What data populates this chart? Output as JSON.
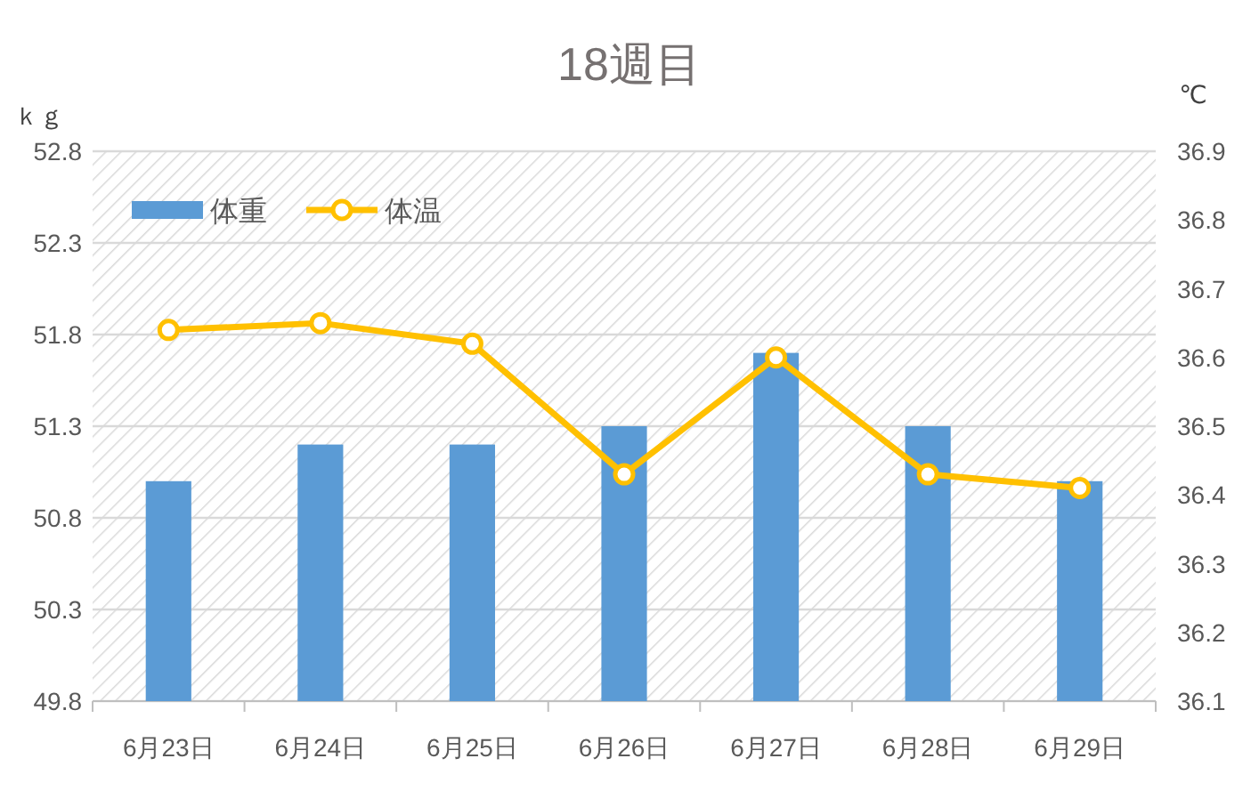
{
  "chart_data": {
    "type": "bar",
    "title": "18週目",
    "ylabel": "ｋｇ",
    "y2label": "℃",
    "categories": [
      "6月23日",
      "6月24日",
      "6月25日",
      "6月26日",
      "6月27日",
      "6月28日",
      "6月29日"
    ],
    "series": [
      {
        "name": "体重",
        "color": "#5b9bd5",
        "values": [
          51.0,
          51.2,
          51.2,
          51.3,
          51.7,
          51.3,
          51.0
        ]
      },
      {
        "name": "体温",
        "type": "line",
        "axis": "y2",
        "color": "#ffc000",
        "marker": "circle",
        "values": [
          36.64,
          36.65,
          36.62,
          36.43,
          36.6,
          36.43,
          36.41
        ]
      }
    ],
    "ylim": [
      49.8,
      52.8
    ],
    "yticks": [
      49.8,
      50.3,
      50.8,
      51.3,
      51.8,
      52.3,
      52.8
    ],
    "y2lim": [
      36.1,
      36.9
    ],
    "y2ticks": [
      36.1,
      36.2,
      36.3,
      36.4,
      36.5,
      36.6,
      36.7,
      36.8,
      36.9
    ],
    "grid": "y",
    "legend": "top left"
  }
}
